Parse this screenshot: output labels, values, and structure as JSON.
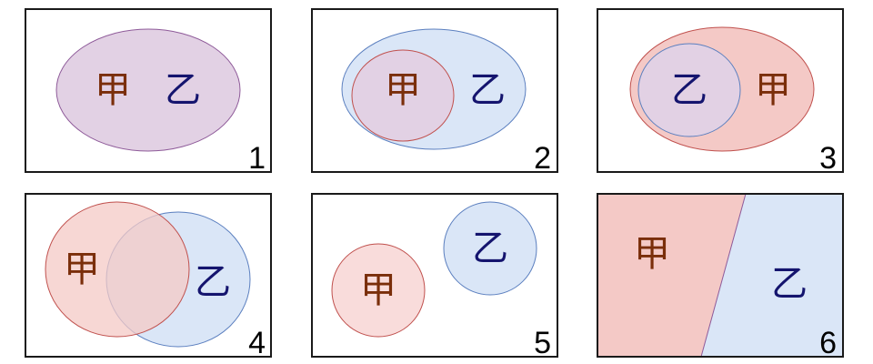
{
  "labels": {
    "a": "甲",
    "b": "乙"
  },
  "colors": {
    "a_fill": "#f4c9c6",
    "a_fill_light": "#f9dcdb",
    "a_stroke": "#c0504d",
    "b_fill": "#dae6f7",
    "b_stroke": "#5b7fbf",
    "overlap_fill": "#e2d1e4",
    "overlap_stroke": "#8e5a99",
    "text_a": "#7a2e0a",
    "text_b": "#14146e"
  },
  "panels": [
    {
      "number": "1",
      "relation": "identical"
    },
    {
      "number": "2",
      "relation": "a-inside-b"
    },
    {
      "number": "3",
      "relation": "b-inside-a"
    },
    {
      "number": "4",
      "relation": "overlap"
    },
    {
      "number": "5",
      "relation": "disjoint"
    },
    {
      "number": "6",
      "relation": "complementary"
    }
  ]
}
